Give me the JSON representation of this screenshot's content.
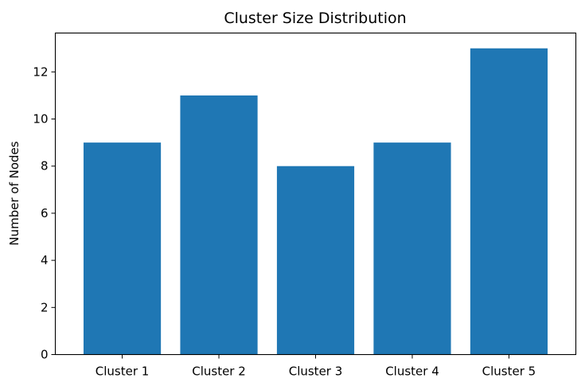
{
  "chart_data": {
    "type": "bar",
    "title": "Cluster Size Distribution",
    "xlabel": "",
    "ylabel": "Number of Nodes",
    "categories": [
      "Cluster 1",
      "Cluster 2",
      "Cluster 3",
      "Cluster 4",
      "Cluster 5"
    ],
    "values": [
      9,
      11,
      8,
      9,
      13
    ],
    "ylim": [
      0,
      13.65
    ],
    "yticks": [
      0,
      2,
      4,
      6,
      8,
      10,
      12
    ],
    "bar_color": "#1f77b4",
    "grid": false,
    "legend": "none"
  }
}
